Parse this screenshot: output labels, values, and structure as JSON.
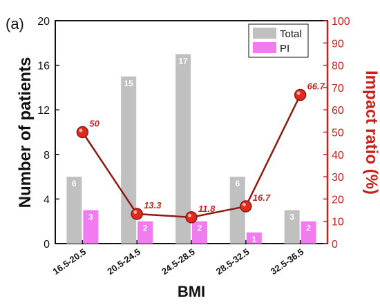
{
  "chart_data": {
    "type": "bar",
    "panel_label": "(a)",
    "categories": [
      "16.5-20.5",
      "20.5-24.5",
      "24.5-28.5",
      "28.5-32.5",
      "32.5-36.5"
    ],
    "series": [
      {
        "name": "Total",
        "axis": "left",
        "kind": "bar",
        "color": "#c0c0c0",
        "values": [
          6,
          15,
          17,
          6,
          3
        ]
      },
      {
        "name": "PI",
        "axis": "left",
        "kind": "bar",
        "color": "#f07cf0",
        "values": [
          3,
          2,
          2,
          1,
          2
        ]
      },
      {
        "name": "",
        "axis": "right",
        "kind": "line",
        "color": "#c0281e",
        "values": [
          50,
          13.3,
          11.8,
          16.7,
          66.7
        ],
        "value_labels": [
          "50",
          "13.3",
          "11.8",
          "16.7",
          "66.7"
        ]
      }
    ],
    "xlabel": "BMI",
    "ylabel": "Number of patients",
    "ylabel_right": "Impact ratio (%)",
    "ylim": [
      0,
      20
    ],
    "yticks": [
      "0",
      "4",
      "8",
      "12",
      "16",
      "20"
    ],
    "ylim_right": [
      0,
      100
    ],
    "yticks_right": [
      "0",
      "10",
      "20",
      "30",
      "40",
      "50",
      "60",
      "70",
      "80",
      "90",
      "100"
    ],
    "legend": {
      "placement": "top-right",
      "entries": [
        "Total",
        "PI"
      ]
    },
    "grid": false
  }
}
